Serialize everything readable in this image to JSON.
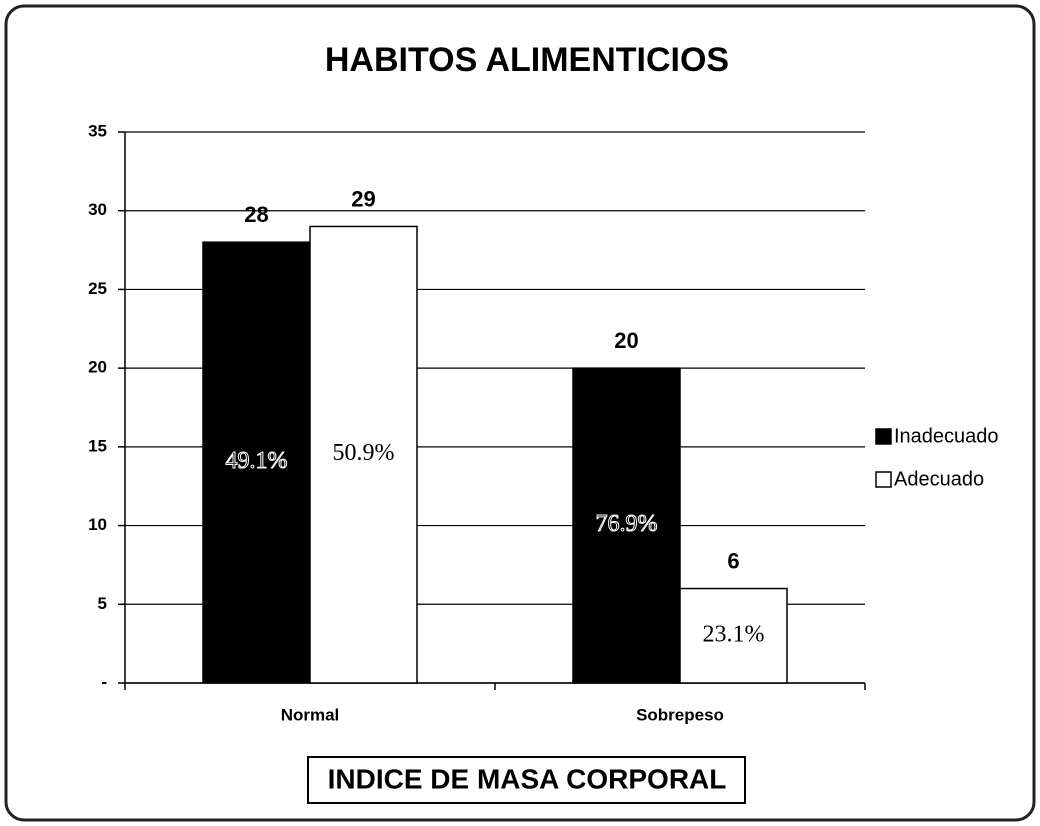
{
  "chart_data": {
    "type": "bar",
    "title": "HABITOS ALIMENTICIOS",
    "x_label": "INDICE DE MASA CORPORAL",
    "categories": [
      "Normal",
      "Sobrepeso"
    ],
    "series": [
      {
        "name": "Inadecuado",
        "color": "#000000",
        "values": [
          28,
          20
        ],
        "percent_labels": [
          "49.1%",
          "76.9%"
        ]
      },
      {
        "name": "Adecuado",
        "color": "#ffffff",
        "values": [
          29,
          6
        ],
        "percent_labels": [
          "50.9%",
          "23.1%"
        ]
      }
    ],
    "ylim": [
      0,
      35
    ],
    "yticks": [
      {
        "value": 0,
        "label": "-"
      },
      5,
      10,
      15,
      20,
      25,
      30,
      35
    ],
    "grid": true,
    "legend": "right"
  }
}
